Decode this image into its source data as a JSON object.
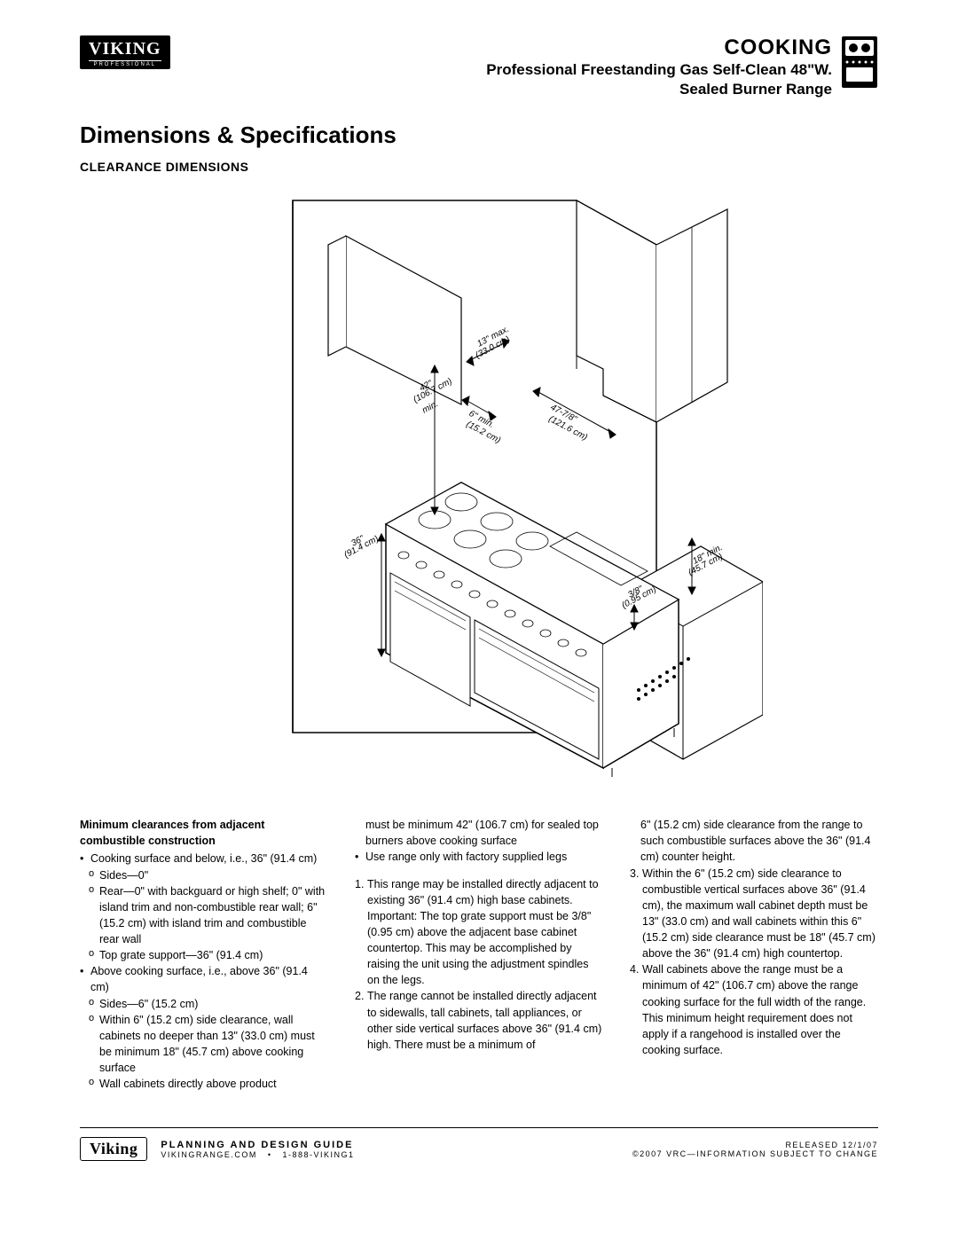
{
  "header": {
    "logo_main": "VIKING",
    "logo_sub": "PROFESSIONAL",
    "category": "COOKING",
    "product_line1": "Professional Freestanding Gas Self-Clean 48\"W.",
    "product_line2": "Sealed Burner Range"
  },
  "section_title": "Dimensions & Specifications",
  "subsection_title": "CLEARANCE DIMENSIONS",
  "diagram": {
    "labels": {
      "d1": "13\" max.",
      "d1b": "(33.0 cm)",
      "d2": "42\"",
      "d2b": "(106.7 cm)",
      "d2c": "min.",
      "d3": "6\" min.",
      "d3b": "(15.2 cm)",
      "d4": "47-7/8\"",
      "d4b": "(121.6 cm)",
      "d5": "36\"",
      "d5b": "(91.4 cm)",
      "d6": "18\" min.",
      "d6b": "(45.7 cm)",
      "d7": "3/8\"",
      "d7b": "(0.95 cm)"
    },
    "colors": {
      "stroke": "#000000",
      "fill": "#ffffff",
      "background": "#ffffff"
    }
  },
  "columns": {
    "heading": "Minimum clearances from adjacent combustible construction",
    "col1": [
      {
        "type": "bullet",
        "text": "Cooking surface and below, i.e., 36\" (91.4 cm)"
      },
      {
        "type": "sub",
        "text": "Sides—0\""
      },
      {
        "type": "sub",
        "text": "Rear—0\" with backguard or high shelf; 0\" with island trim and non-combustible rear wall; 6\" (15.2 cm) with island trim and combustible rear wall"
      },
      {
        "type": "sub",
        "text": "Top grate support—36\" (91.4 cm)"
      },
      {
        "type": "bullet",
        "text": "Above cooking surface, i.e., above 36\" (91.4 cm)"
      },
      {
        "type": "sub",
        "text": "Sides—6\" (15.2 cm)"
      },
      {
        "type": "sub",
        "text": "Within 6\" (15.2 cm) side clearance, wall cabinets no deeper than 13\" (33.0 cm) must be minimum 18\" (45.7 cm) above cooking surface"
      },
      {
        "type": "sub",
        "text": "Wall cabinets directly above product"
      }
    ],
    "col2_pre": [
      {
        "type": "plain",
        "text": "must be minimum 42\" (106.7 cm) for sealed top burners above cooking surface"
      },
      {
        "type": "bullet",
        "text": "Use range only with factory supplied legs"
      }
    ],
    "col2_num": [
      {
        "n": "1.",
        "text": "This range may be installed directly adjacent to existing 36\" (91.4 cm) high base cabinets. Important: The top grate support must be 3/8\" (0.95 cm) above the adjacent base cabinet countertop. This may be accomplished by raising the unit using the adjustment spindles on the legs."
      },
      {
        "n": "2.",
        "text": "The range cannot be installed directly adjacent to sidewalls, tall cabinets, tall appliances, or other side vertical surfaces above 36\" (91.4 cm) high. There must be a minimum of"
      }
    ],
    "col3_pre": [
      {
        "type": "plain",
        "text": "6\" (15.2 cm) side clearance from the range to such combustible surfaces above the 36\" (91.4 cm) counter height."
      }
    ],
    "col3_num": [
      {
        "n": "3.",
        "text": "Within the 6\" (15.2 cm) side clearance to combustible vertical surfaces above 36\" (91.4 cm), the maximum wall cabinet depth must be 13\" (33.0 cm) and wall cabinets within this 6\" (15.2 cm) side clearance must be 18\" (45.7 cm) above the 36\" (91.4 cm) high countertop."
      },
      {
        "n": "4.",
        "text": "Wall cabinets above the range must be a minimum of 42\" (106.7 cm) above the range cooking surface for the full width of the range. This minimum height requirement does not apply if a rangehood is installed over the cooking surface."
      }
    ]
  },
  "footer": {
    "logo": "Viking",
    "guide": "PLANNING AND DESIGN GUIDE",
    "url": "VIKINGRANGE.COM",
    "phone": "1-888-VIKING1",
    "released": "RELEASED 12/1/07",
    "copyright": "©2007 VRC—INFORMATION SUBJECT TO CHANGE"
  }
}
